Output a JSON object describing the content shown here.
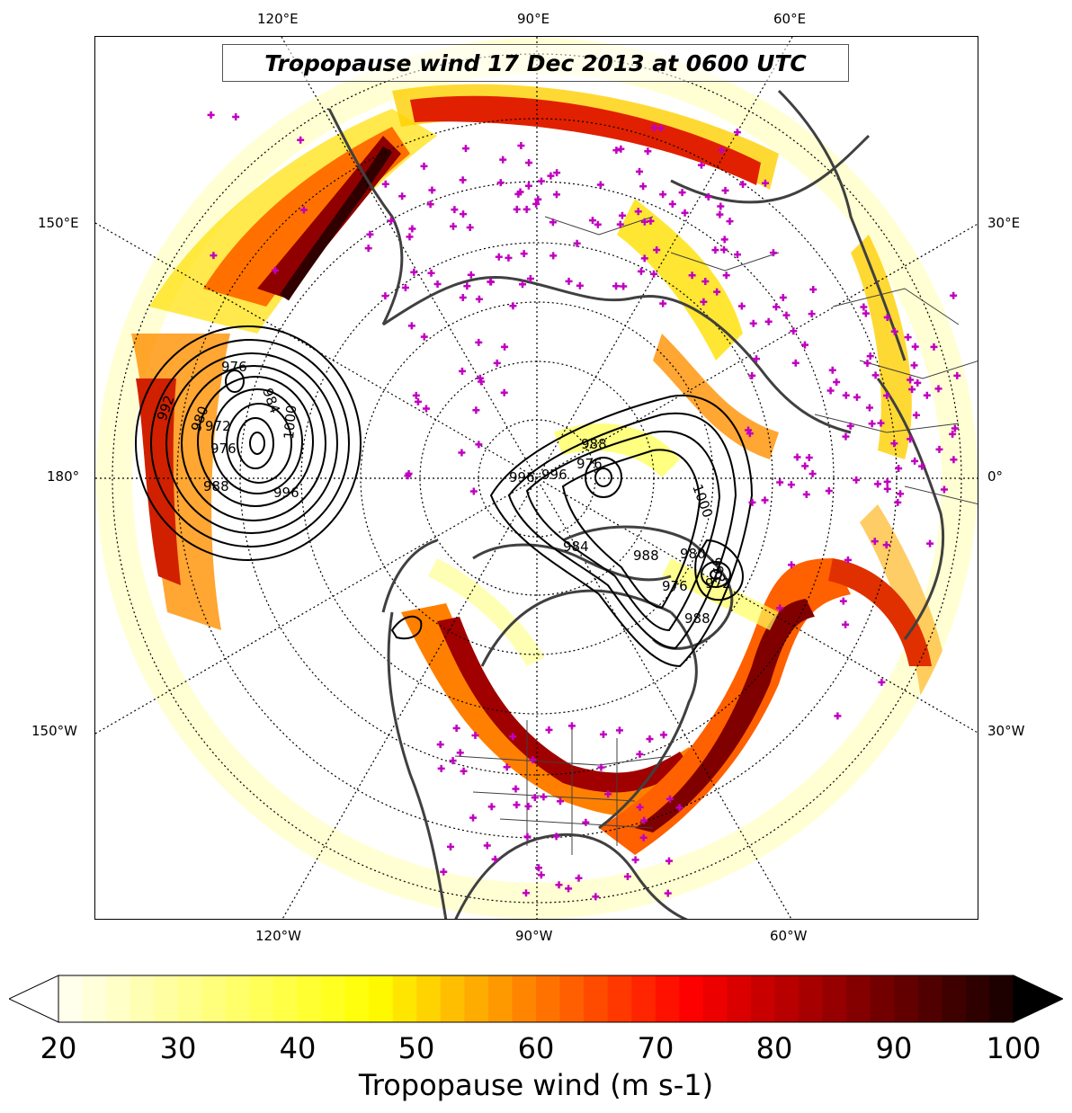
{
  "title": "Tropopause wind 17 Dec 2013 at 0600 UTC",
  "lon_labels": {
    "top": [
      "120°E",
      "90°E",
      "60°E"
    ],
    "left": [
      "150°E",
      "180°",
      "150°W"
    ],
    "right": [
      "30°E",
      "0°",
      "30°W"
    ],
    "bottom": [
      "120°W",
      "90°W",
      "60°W"
    ]
  },
  "contour_labels": [
    "976",
    "984",
    "992",
    "980",
    "972",
    "976",
    "988",
    "996",
    "1000",
    "996",
    "988",
    "996",
    "976",
    "988",
    "984",
    "980",
    "972",
    "976",
    "988",
    "1000",
    "992"
  ],
  "colorbar": {
    "label": "Tropopause wind (m s-1)",
    "ticks": [
      "20",
      "30",
      "40",
      "50",
      "60",
      "70",
      "80",
      "90",
      "100"
    ],
    "min": 20,
    "max": 100,
    "extend": "both"
  },
  "colors": {
    "frame": "#000000",
    "coastline": "#404040",
    "contour": "#000000",
    "station_marker": "#c000c0"
  }
}
